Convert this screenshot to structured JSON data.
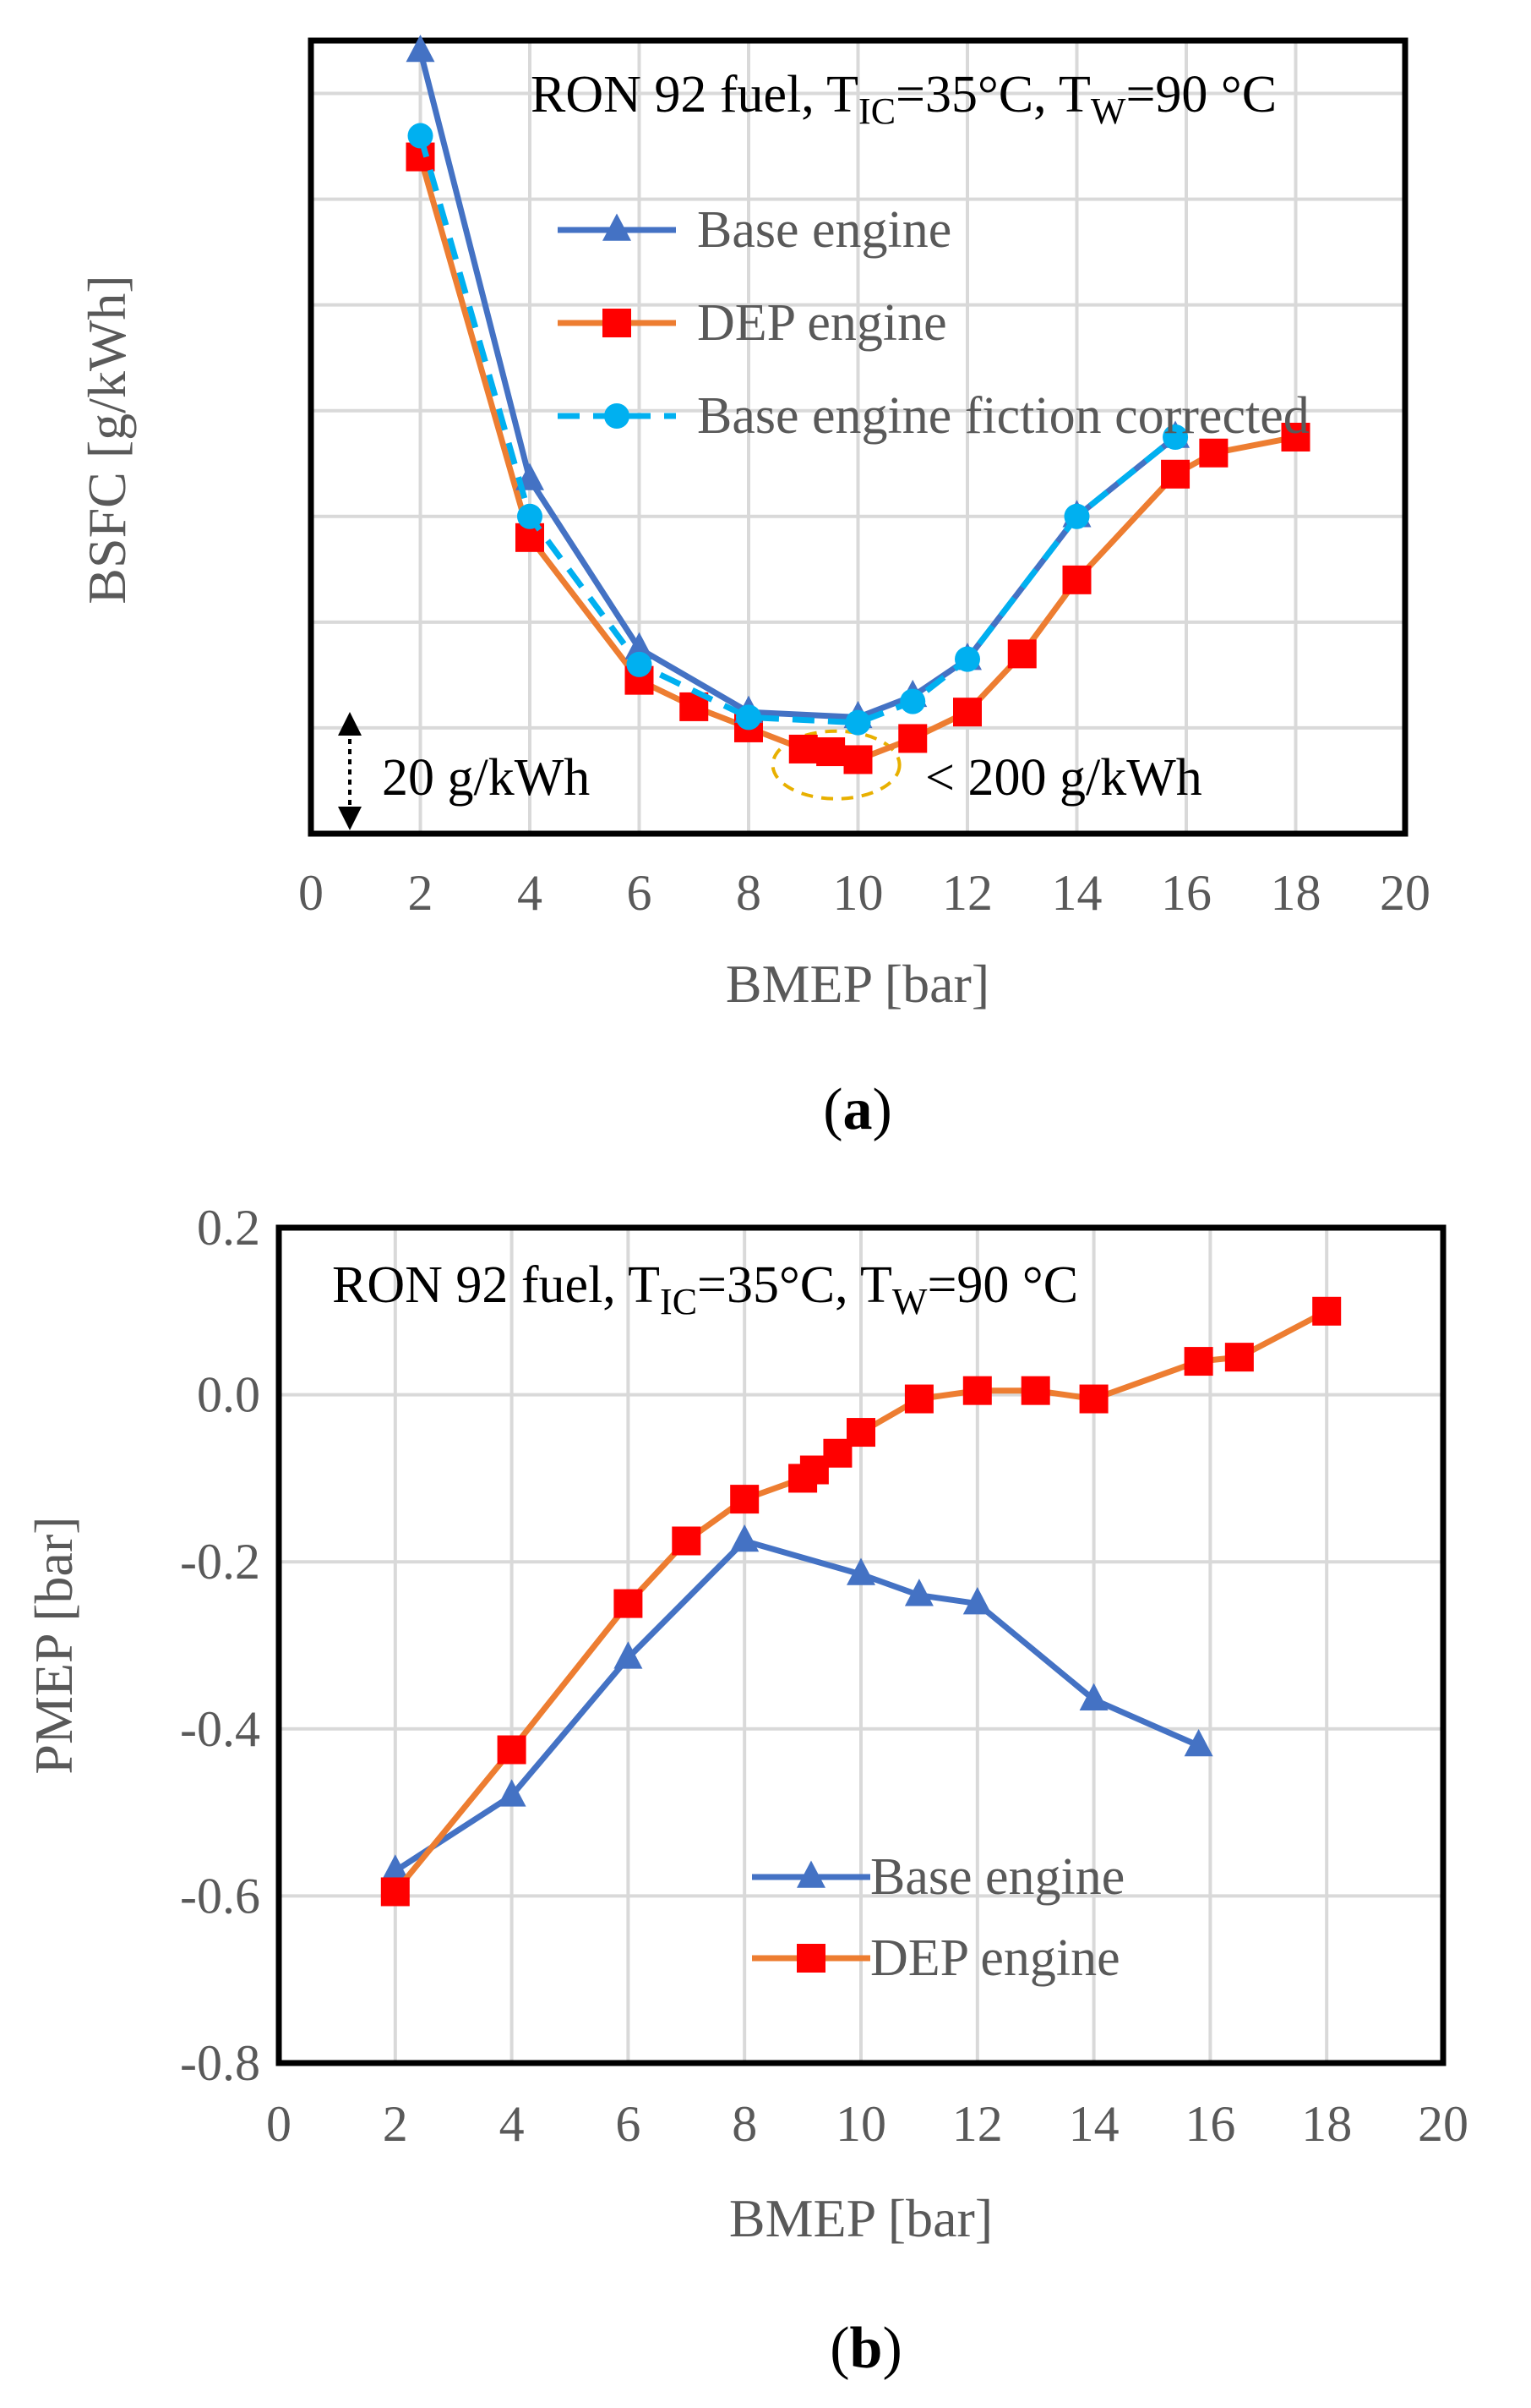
{
  "colors": {
    "base": "#4472C4",
    "dep_line": "#ED7D31",
    "dep_marker": "#FF0000",
    "corrected": "#00B0F0",
    "note": "#E8B000"
  },
  "chart_data": [
    {
      "type": "line",
      "panel_caption_prefix": "(",
      "panel_caption_letter": "a",
      "panel_caption_suffix": ")",
      "title_prefix": "RON 92 fuel, T",
      "title_sub1": "IC",
      "title_mid": "=35°C,  T",
      "title_sub2": "W",
      "title_suffix": "=90 °C",
      "xlabel": "BMEP [bar]",
      "ylabel": "BSFC [g/kWh]",
      "xlim": [
        0,
        20
      ],
      "x_ticks": [
        "0",
        "2",
        "4",
        "6",
        "8",
        "10",
        "12",
        "14",
        "16",
        "18",
        "20"
      ],
      "ylim": [
        190,
        340
      ],
      "y_grid_step": 20,
      "y_tick_labels_shown": false,
      "scale_annotation": "20 g/kWh",
      "note": "< 200 g/kWh",
      "legend_position": "top-right",
      "series": [
        {
          "name": "Base engine",
          "marker": "triangle",
          "x": [
            2,
            4,
            6,
            8,
            10,
            11,
            12,
            14,
            15.8
          ],
          "y": [
            338,
            257,
            225,
            213,
            212,
            216,
            223,
            250,
            265
          ]
        },
        {
          "name": "DEP engine",
          "marker": "square",
          "x": [
            2,
            4,
            6,
            7,
            8,
            9,
            9.5,
            10,
            11,
            12,
            13,
            14,
            15.8,
            16.5,
            18
          ],
          "y": [
            318,
            246,
            219,
            214,
            210,
            206,
            205.5,
            204,
            208,
            213,
            224,
            238,
            258,
            262,
            265
          ]
        },
        {
          "name": "Base engine fiction corrected",
          "marker": "circle",
          "dash": true,
          "x": [
            2,
            4,
            6,
            8,
            10,
            11,
            12,
            14,
            15.8
          ],
          "y": [
            322,
            250,
            222,
            212,
            211,
            215,
            223,
            250,
            265
          ]
        }
      ]
    },
    {
      "type": "line",
      "panel_caption_prefix": "(",
      "panel_caption_letter": "b",
      "panel_caption_suffix": ")",
      "title_prefix": "RON 92 fuel, T",
      "title_sub1": "IC",
      "title_mid": "=35°C,  T",
      "title_sub2": "W",
      "title_suffix": "=90 °C",
      "xlabel": "BMEP [bar]",
      "ylabel": "PMEP [bar]",
      "xlim": [
        0,
        20
      ],
      "x_ticks": [
        "0",
        "2",
        "4",
        "6",
        "8",
        "10",
        "12",
        "14",
        "16",
        "18",
        "20"
      ],
      "ylim": [
        -0.8,
        0.2
      ],
      "y_ticks": [
        "-0.8",
        "-0.6",
        "-0.4",
        "-0.2",
        "0.0",
        "0.2"
      ],
      "y_tick_values": [
        -0.8,
        -0.6,
        -0.4,
        -0.2,
        0.0,
        0.2
      ],
      "legend_position": "bottom-center",
      "series": [
        {
          "name": "Base engine",
          "marker": "triangle",
          "x": [
            2,
            4,
            6,
            8,
            10,
            11,
            12,
            14,
            15.8
          ],
          "y": [
            -0.57,
            -0.48,
            -0.315,
            -0.175,
            -0.215,
            -0.24,
            -0.25,
            -0.365,
            -0.42
          ]
        },
        {
          "name": "DEP engine",
          "marker": "square",
          "x": [
            2,
            4,
            6,
            7,
            8,
            9,
            9.2,
            9.6,
            10,
            11,
            12,
            13,
            14,
            15.8,
            16.5,
            18
          ],
          "y": [
            -0.595,
            -0.425,
            -0.25,
            -0.175,
            -0.125,
            -0.1,
            -0.09,
            -0.07,
            -0.045,
            -0.005,
            0.005,
            0.005,
            -0.005,
            0.04,
            0.045,
            0.1
          ]
        }
      ]
    }
  ]
}
